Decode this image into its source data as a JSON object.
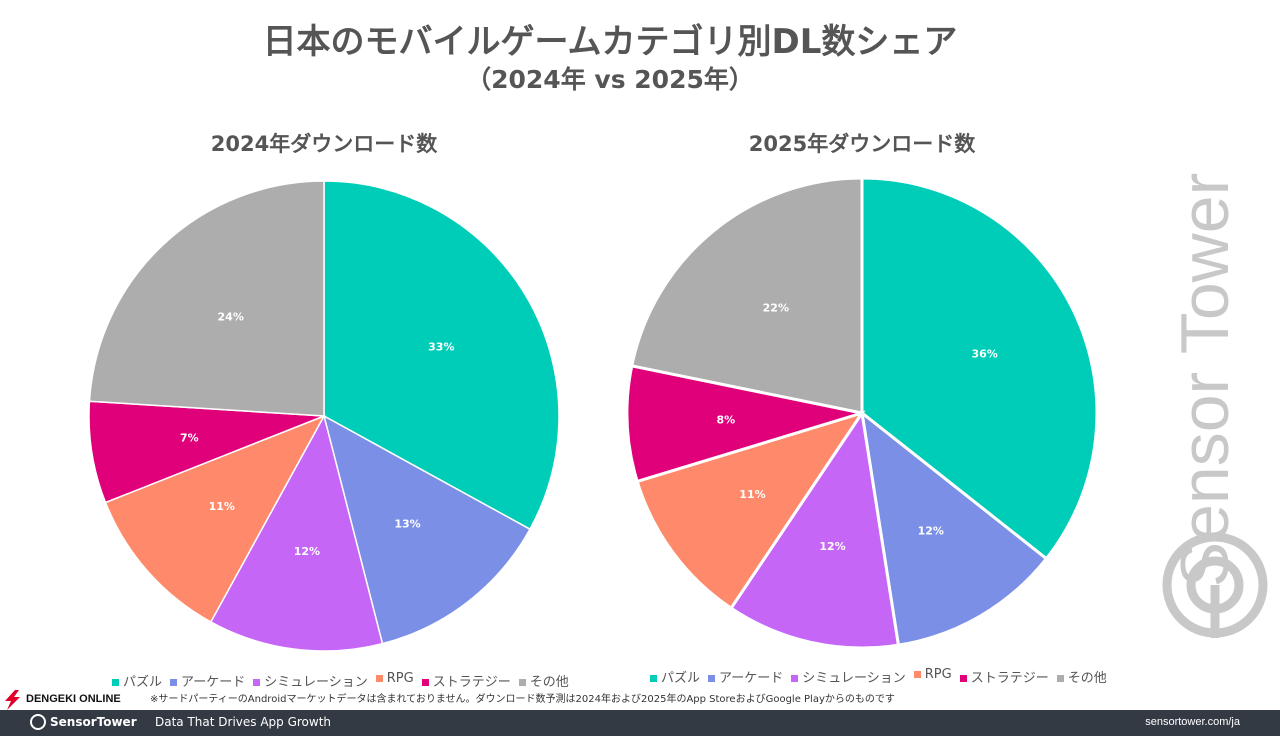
{
  "title": "日本のモバイルゲームカテゴリ別DL数シェア",
  "subtitle": "（2024年 vs 2025年）",
  "colors": [
    "#00CDB8",
    "#7B8FE6",
    "#C566F7",
    "#FF8A6B",
    "#E0007A",
    "#ADADAD"
  ],
  "chart_data": [
    {
      "type": "pie",
      "title": "2024年ダウンロード数",
      "categories": [
        "パズル",
        "アーケード",
        "シミュレーション",
        "RPG",
        "ストラテジー",
        "その他"
      ],
      "values": [
        33,
        13,
        12,
        11,
        7,
        24
      ],
      "labels": [
        "33%",
        "13%",
        "12%",
        "11%",
        "7%",
        "24%"
      ],
      "legend": "bottom"
    },
    {
      "type": "pie",
      "title": "2025年ダウンロード数",
      "categories": [
        "パズル",
        "アーケード",
        "シミュレーション",
        "RPG",
        "ストラテジー",
        "その他"
      ],
      "values": [
        36,
        12,
        12,
        11,
        8,
        22
      ],
      "labels": [
        "36%",
        "12%",
        "12%",
        "11%",
        "8%",
        "22%"
      ],
      "legend": "bottom"
    }
  ],
  "watermark": "Sensor Tower",
  "footnote": "※サードパーティーのAndroidマーケットデータは含まれておりません。ダウンロード数予測は2024年および2025年のApp StoreおよびGoogle Playからのものです",
  "footer": {
    "brand": "SensorTower",
    "tagline": "Data That Drives App Growth",
    "url": "sensortower.com/ja"
  },
  "overlay_logo": "DENGEKI ONLINE"
}
